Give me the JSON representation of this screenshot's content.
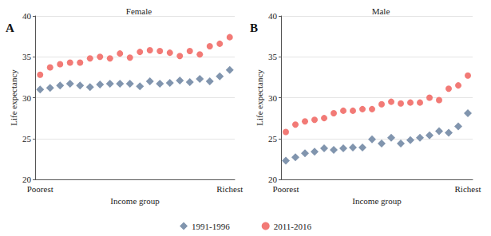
{
  "chart_data": [
    {
      "type": "scatter",
      "title": "Female",
      "annotations": [
        "A"
      ],
      "x_label": "Income group",
      "y_label": "Life expectancy",
      "categories": [
        "Poorest",
        null,
        null,
        null,
        null,
        null,
        null,
        null,
        null,
        null,
        null,
        null,
        null,
        null,
        null,
        null,
        null,
        null,
        null,
        "Richest"
      ],
      "series": [
        {
          "name": "1991-1996",
          "color": "#8195ae",
          "marker": "diamond",
          "values": [
            31.0,
            31.2,
            31.5,
            31.7,
            31.5,
            31.3,
            31.6,
            31.7,
            31.7,
            31.7,
            31.4,
            32.0,
            31.7,
            31.8,
            32.1,
            31.9,
            32.3,
            32.0,
            32.6,
            33.4
          ]
        },
        {
          "name": "2011-2016",
          "color": "#f27a76",
          "marker": "circle",
          "values": [
            32.8,
            33.7,
            34.1,
            34.3,
            34.3,
            34.8,
            35.0,
            34.8,
            35.4,
            34.9,
            35.6,
            35.8,
            35.7,
            35.5,
            35.1,
            35.7,
            35.3,
            36.3,
            36.6,
            37.4
          ]
        }
      ],
      "ylim": [
        20,
        40
      ],
      "yticks": [
        20,
        25,
        30,
        35,
        40
      ],
      "grid": true,
      "legend": "bottom"
    },
    {
      "type": "scatter",
      "title": "Male",
      "annotations": [
        "B"
      ],
      "x_label": "Income group",
      "y_label": "Life expectancy",
      "categories": [
        "Poorest",
        null,
        null,
        null,
        null,
        null,
        null,
        null,
        null,
        null,
        null,
        null,
        null,
        null,
        null,
        null,
        null,
        null,
        null,
        "Richest"
      ],
      "series": [
        {
          "name": "1991-1996",
          "color": "#8195ae",
          "marker": "diamond",
          "values": [
            22.3,
            22.7,
            23.2,
            23.4,
            23.8,
            23.6,
            23.8,
            23.9,
            23.9,
            24.9,
            24.4,
            25.1,
            24.4,
            24.8,
            25.1,
            25.4,
            25.9,
            25.7,
            26.5,
            28.1
          ]
        },
        {
          "name": "2011-2016",
          "color": "#f27a76",
          "marker": "circle",
          "values": [
            25.8,
            26.7,
            27.1,
            27.3,
            27.5,
            28.1,
            28.4,
            28.4,
            28.6,
            28.6,
            29.2,
            29.5,
            29.3,
            29.4,
            29.4,
            30.0,
            29.7,
            31.1,
            31.5,
            32.7
          ]
        }
      ],
      "ylim": [
        20,
        40
      ],
      "yticks": [
        20,
        25,
        30,
        35,
        40
      ],
      "grid": true,
      "legend": "bottom"
    }
  ]
}
